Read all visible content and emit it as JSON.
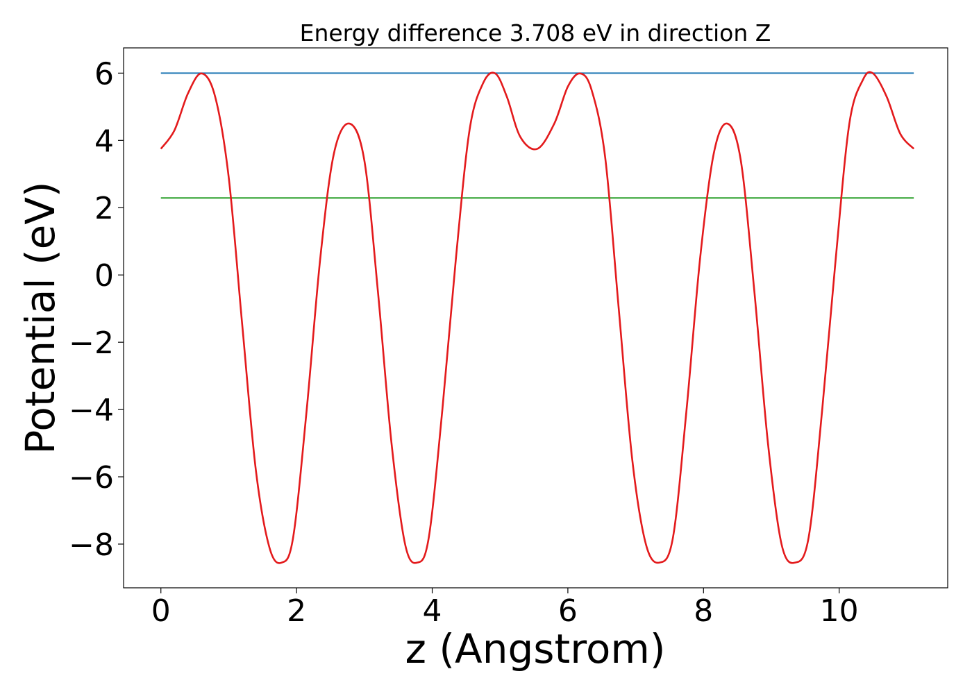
{
  "chart_data": {
    "type": "line",
    "title": "Energy difference 3.708 eV in direction Z",
    "xlabel": "z (Angstrom)",
    "ylabel": "Potential (eV)",
    "xlim": [
      -0.55,
      11.6
    ],
    "ylim": [
      -9.3,
      6.75
    ],
    "x_ticks": [
      0,
      2,
      4,
      6,
      8,
      10
    ],
    "y_ticks": [
      -8,
      -6,
      -4,
      -2,
      0,
      2,
      4,
      6
    ],
    "x_tick_labels": [
      "0",
      "2",
      "4",
      "6",
      "8",
      "10"
    ],
    "y_tick_labels": [
      "−8",
      "−6",
      "−4",
      "−2",
      "0",
      "2",
      "4",
      "6"
    ],
    "grid": false,
    "series": [
      {
        "role": "potential",
        "color": "#e31a1c",
        "x": [
          0.0,
          0.2,
          0.4,
          0.6,
          0.8,
          1.0,
          1.2,
          1.4,
          1.6,
          1.78,
          1.95,
          2.15,
          2.35,
          2.55,
          2.78,
          3.0,
          3.2,
          3.4,
          3.6,
          3.78,
          3.95,
          4.15,
          4.35,
          4.55,
          4.75,
          4.93,
          5.1,
          5.3,
          5.55,
          5.8,
          6.0,
          6.18,
          6.35,
          6.55,
          6.75,
          6.95,
          7.15,
          7.35,
          7.55,
          7.75,
          7.95,
          8.15,
          8.35,
          8.55,
          8.75,
          8.95,
          9.15,
          9.35,
          9.55,
          9.75,
          9.95,
          10.15,
          10.35,
          10.5,
          10.7,
          10.9,
          11.1
        ],
        "y": [
          3.75,
          4.3,
          5.4,
          5.99,
          5.3,
          2.9,
          -1.5,
          -5.8,
          -8.1,
          -8.55,
          -7.8,
          -4.0,
          0.5,
          3.6,
          4.5,
          3.4,
          -0.5,
          -5.0,
          -8.0,
          -8.55,
          -7.8,
          -4.0,
          0.5,
          4.3,
          5.7,
          5.99,
          5.3,
          4.1,
          3.75,
          4.5,
          5.6,
          5.99,
          5.5,
          3.5,
          -1.0,
          -5.5,
          -8.0,
          -8.55,
          -7.8,
          -4.0,
          0.5,
          3.6,
          4.5,
          3.4,
          -0.5,
          -5.0,
          -8.0,
          -8.55,
          -7.8,
          -4.0,
          0.5,
          4.5,
          5.8,
          5.99,
          5.3,
          4.2,
          3.75
        ]
      },
      {
        "role": "horizontal line",
        "color": "#1f77b4",
        "x": [
          0.0,
          11.1
        ],
        "y": [
          6.0,
          6.0
        ]
      },
      {
        "role": "horizontal line",
        "color": "#2ca02c",
        "x": [
          0.0,
          11.1
        ],
        "y": [
          2.29,
          2.29
        ]
      }
    ]
  }
}
